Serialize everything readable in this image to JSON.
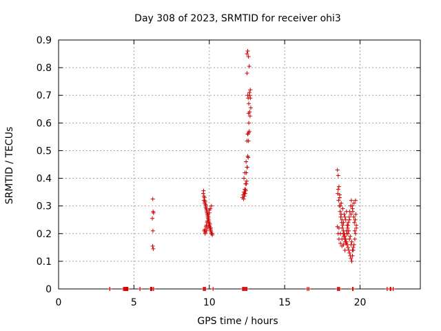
{
  "chart_data": {
    "type": "scatter",
    "title": "Day 308 of 2023, SRMTID for receiver ohi3",
    "xlabel": "GPS time / hours",
    "ylabel": "SRMTID / TECUs",
    "xlim": [
      0,
      24
    ],
    "ylim": [
      0,
      0.9
    ],
    "xticks": [
      0,
      5,
      10,
      15,
      20
    ],
    "yticks": [
      0,
      0.1,
      0.2,
      0.3,
      0.4,
      0.5,
      0.6,
      0.7,
      0.8,
      0.9
    ],
    "grid": true,
    "marker": "+",
    "color": "#cc0000",
    "series": [
      {
        "name": "SRMTID",
        "x": [
          3.4,
          4.3,
          4.4,
          4.45,
          4.5,
          4.55,
          4.6,
          5.4,
          6.1,
          6.2,
          6.3,
          6.25,
          6.27,
          6.3,
          6.22,
          6.26,
          6.24,
          6.28,
          9.6,
          9.65,
          9.7,
          9.75,
          9.8,
          9.85,
          9.9,
          9.95,
          10.0,
          10.05,
          10.1,
          10.15,
          10.2,
          9.62,
          9.68,
          9.72,
          9.78,
          9.82,
          9.88,
          9.92,
          9.98,
          10.02,
          10.08,
          10.12,
          10.18,
          9.64,
          9.7,
          9.76,
          9.84,
          9.9,
          9.96,
          10.04,
          10.1,
          9.66,
          9.74,
          9.8,
          9.86,
          9.94,
          10.0,
          10.06,
          10.14,
          9.7,
          9.78,
          9.86,
          9.92,
          10.0,
          9.72,
          9.8,
          9.88,
          9.96,
          12.2,
          12.25,
          12.3,
          12.35,
          12.4,
          12.45,
          12.5,
          12.55,
          12.6,
          12.65,
          12.7,
          12.75,
          12.28,
          12.32,
          12.38,
          12.42,
          12.48,
          12.52,
          12.58,
          12.62,
          12.68,
          12.72,
          12.3,
          12.36,
          12.44,
          12.5,
          12.56,
          12.62,
          12.68,
          12.34,
          12.4,
          12.46,
          12.54,
          12.6,
          12.66,
          12.72,
          12.5,
          12.55,
          12.6,
          12.65,
          12.5,
          12.55,
          12.58,
          12.62,
          16.5,
          16.6,
          18.5,
          18.55,
          18.6,
          18.65,
          18.7,
          18.75,
          18.8,
          18.85,
          18.9,
          18.95,
          19.0,
          19.05,
          19.1,
          19.15,
          19.2,
          19.25,
          19.3,
          19.35,
          19.4,
          19.45,
          19.5,
          19.55,
          19.6,
          19.65,
          19.7,
          19.75,
          18.52,
          18.58,
          18.62,
          18.68,
          18.72,
          18.78,
          18.82,
          18.88,
          18.92,
          18.98,
          19.02,
          19.08,
          19.12,
          19.18,
          19.22,
          19.28,
          19.32,
          19.38,
          19.42,
          19.48,
          19.52,
          19.58,
          19.62,
          19.68,
          19.72,
          18.55,
          18.65,
          18.75,
          18.85,
          18.95,
          19.05,
          19.15,
          19.25,
          19.35,
          19.45,
          19.55,
          19.65,
          19.75,
          18.6,
          18.7,
          18.8,
          18.9,
          19.0,
          19.1,
          19.2,
          19.3,
          19.4,
          19.5,
          19.6,
          19.7,
          18.5,
          18.55,
          18.6,
          18.7,
          18.8,
          18.9,
          19.0,
          19.1,
          19.2,
          19.3,
          19.4,
          19.5,
          21.8,
          22.0,
          22.2
        ],
        "y": [
          0,
          0,
          0,
          0,
          0,
          0,
          0,
          0,
          0,
          0,
          0,
          0.325,
          0.28,
          0.275,
          0.255,
          0.21,
          0.155,
          0.145,
          0.345,
          0.335,
          0.32,
          0.305,
          0.29,
          0.275,
          0.26,
          0.245,
          0.23,
          0.22,
          0.21,
          0.2,
          0.195,
          0.355,
          0.33,
          0.315,
          0.3,
          0.285,
          0.27,
          0.255,
          0.24,
          0.225,
          0.215,
          0.205,
          0.2,
          0.32,
          0.31,
          0.295,
          0.28,
          0.265,
          0.25,
          0.235,
          0.22,
          0.21,
          0.205,
          0.23,
          0.245,
          0.26,
          0.275,
          0.29,
          0.3,
          0.215,
          0.225,
          0.24,
          0.27,
          0.285,
          0.2,
          0.21,
          0.22,
          0.23,
          0.33,
          0.34,
          0.35,
          0.36,
          0.38,
          0.42,
          0.44,
          0.48,
          0.535,
          0.57,
          0.625,
          0.655,
          0.325,
          0.335,
          0.345,
          0.355,
          0.39,
          0.44,
          0.475,
          0.565,
          0.64,
          0.69,
          0.4,
          0.42,
          0.46,
          0.535,
          0.56,
          0.6,
          0.7,
          0.345,
          0.36,
          0.38,
          0.56,
          0.635,
          0.71,
          0.72,
          0.85,
          0.86,
          0.84,
          0.805,
          0.78,
          0.7,
          0.69,
          0.67,
          0,
          0,
          0.43,
          0.41,
          0.37,
          0.33,
          0.3,
          0.27,
          0.25,
          0.23,
          0.21,
          0.2,
          0.19,
          0.18,
          0.17,
          0.16,
          0.15,
          0.14,
          0.13,
          0.12,
          0.11,
          0.1,
          0.12,
          0.14,
          0.16,
          0.18,
          0.2,
          0.22,
          0.345,
          0.32,
          0.3,
          0.28,
          0.26,
          0.24,
          0.22,
          0.2,
          0.19,
          0.18,
          0.17,
          0.165,
          0.2,
          0.22,
          0.24,
          0.26,
          0.28,
          0.3,
          0.32,
          0.3,
          0.28,
          0.26,
          0.24,
          0.25,
          0.27,
          0.36,
          0.34,
          0.31,
          0.29,
          0.27,
          0.25,
          0.23,
          0.21,
          0.19,
          0.17,
          0.15,
          0.21,
          0.23,
          0.22,
          0.2,
          0.18,
          0.16,
          0.14,
          0.21,
          0.23,
          0.25,
          0.27,
          0.29,
          0.31,
          0.32,
          0.225,
          0.2,
          0.18,
          0.165,
          0.155,
          0.24,
          0.26,
          0.28,
          0.2,
          0.18,
          0.16,
          0.14,
          0,
          0,
          0
        ]
      }
    ],
    "baseline_x": [
      3.4,
      4.3,
      4.35,
      4.4,
      4.45,
      4.5,
      4.55,
      4.6,
      5.4,
      6.1,
      6.15,
      6.2,
      6.3,
      9.6,
      9.65,
      9.7,
      9.75,
      10.25,
      12.2,
      12.25,
      12.3,
      12.35,
      12.4,
      12.45,
      12.5,
      16.5,
      16.6,
      18.5,
      18.55,
      18.6,
      18.65,
      19.5,
      19.55,
      21.8,
      22.0,
      22.05,
      22.2
    ]
  }
}
